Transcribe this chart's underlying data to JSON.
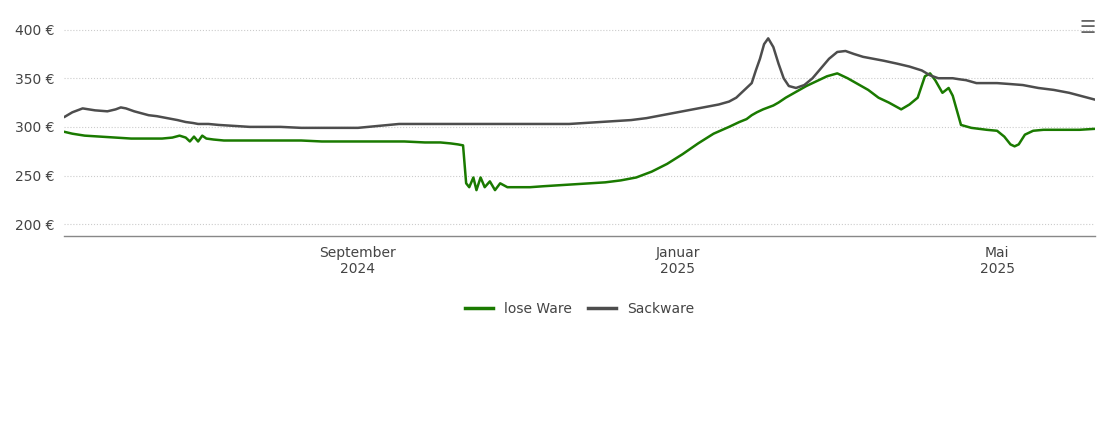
{
  "yticks": [
    200,
    250,
    300,
    350,
    400
  ],
  "ylim": [
    188,
    415
  ],
  "legend_labels": [
    "lose Ware",
    "Sackware"
  ],
  "line_color_lose": "#1a7a00",
  "line_color_sack": "#4d4d4d",
  "background_color": "#ffffff",
  "grid_color": "#cccccc",
  "grid_linestyle": "dotted",
  "xtick_labels": [
    "September\n2024",
    "Januar\n2025",
    "Mai\n2025"
  ],
  "xtick_positions": [
    0.285,
    0.595,
    0.905
  ],
  "lose_x": [
    0.0,
    0.008,
    0.02,
    0.035,
    0.05,
    0.065,
    0.075,
    0.085,
    0.095,
    0.105,
    0.112,
    0.118,
    0.122,
    0.126,
    0.13,
    0.134,
    0.138,
    0.145,
    0.155,
    0.17,
    0.19,
    0.21,
    0.23,
    0.25,
    0.27,
    0.29,
    0.31,
    0.33,
    0.35,
    0.365,
    0.375,
    0.382,
    0.387,
    0.39,
    0.393,
    0.397,
    0.4,
    0.404,
    0.408,
    0.413,
    0.418,
    0.423,
    0.43,
    0.44,
    0.452,
    0.465,
    0.48,
    0.495,
    0.51,
    0.525,
    0.54,
    0.555,
    0.57,
    0.585,
    0.6,
    0.615,
    0.63,
    0.645,
    0.655,
    0.662,
    0.667,
    0.672,
    0.678,
    0.683,
    0.688,
    0.693,
    0.7,
    0.71,
    0.72,
    0.73,
    0.74,
    0.75,
    0.76,
    0.77,
    0.78,
    0.79,
    0.8,
    0.812,
    0.82,
    0.828,
    0.835,
    0.84,
    0.845,
    0.852,
    0.858,
    0.862,
    0.87,
    0.88,
    0.895,
    0.905,
    0.912,
    0.918,
    0.922,
    0.926,
    0.932,
    0.94,
    0.95,
    0.96,
    0.972,
    0.985,
    1.0
  ],
  "lose_y": [
    295,
    293,
    291,
    290,
    289,
    288,
    288,
    288,
    288,
    289,
    291,
    289,
    285,
    290,
    285,
    291,
    288,
    287,
    286,
    286,
    286,
    286,
    286,
    285,
    285,
    285,
    285,
    285,
    284,
    284,
    283,
    282,
    281,
    242,
    238,
    248,
    235,
    248,
    238,
    244,
    235,
    242,
    238,
    238,
    238,
    239,
    240,
    241,
    242,
    243,
    245,
    248,
    254,
    262,
    272,
    283,
    293,
    300,
    305,
    308,
    312,
    315,
    318,
    320,
    322,
    325,
    330,
    336,
    342,
    347,
    352,
    355,
    350,
    344,
    338,
    330,
    325,
    318,
    323,
    330,
    352,
    355,
    348,
    335,
    340,
    332,
    302,
    299,
    297,
    296,
    290,
    282,
    280,
    282,
    292,
    296,
    297,
    297,
    297,
    297,
    298
  ],
  "sack_x": [
    0.0,
    0.008,
    0.018,
    0.03,
    0.042,
    0.05,
    0.055,
    0.06,
    0.068,
    0.075,
    0.082,
    0.09,
    0.1,
    0.11,
    0.118,
    0.125,
    0.13,
    0.135,
    0.14,
    0.15,
    0.165,
    0.18,
    0.195,
    0.21,
    0.23,
    0.25,
    0.265,
    0.275,
    0.285,
    0.295,
    0.305,
    0.315,
    0.325,
    0.34,
    0.355,
    0.37,
    0.385,
    0.4,
    0.415,
    0.43,
    0.445,
    0.46,
    0.475,
    0.49,
    0.505,
    0.52,
    0.535,
    0.55,
    0.565,
    0.58,
    0.595,
    0.605,
    0.615,
    0.625,
    0.635,
    0.645,
    0.652,
    0.658,
    0.663,
    0.667,
    0.671,
    0.675,
    0.679,
    0.683,
    0.688,
    0.693,
    0.698,
    0.703,
    0.71,
    0.718,
    0.726,
    0.734,
    0.742,
    0.75,
    0.758,
    0.766,
    0.775,
    0.785,
    0.795,
    0.808,
    0.82,
    0.832,
    0.84,
    0.848,
    0.856,
    0.862,
    0.868,
    0.875,
    0.885,
    0.895,
    0.905,
    0.918,
    0.93,
    0.945,
    0.96,
    0.975,
    1.0
  ],
  "sack_y": [
    310,
    315,
    319,
    317,
    316,
    318,
    320,
    319,
    316,
    314,
    312,
    311,
    309,
    307,
    305,
    304,
    303,
    303,
    303,
    302,
    301,
    300,
    300,
    300,
    299,
    299,
    299,
    299,
    299,
    300,
    301,
    302,
    303,
    303,
    303,
    303,
    303,
    303,
    303,
    303,
    303,
    303,
    303,
    303,
    304,
    305,
    306,
    307,
    309,
    312,
    315,
    317,
    319,
    321,
    323,
    326,
    330,
    336,
    341,
    345,
    358,
    370,
    385,
    391,
    382,
    365,
    350,
    342,
    340,
    343,
    350,
    360,
    370,
    377,
    378,
    375,
    372,
    370,
    368,
    365,
    362,
    358,
    353,
    350,
    350,
    350,
    349,
    348,
    345,
    345,
    345,
    344,
    343,
    340,
    338,
    335,
    328
  ]
}
